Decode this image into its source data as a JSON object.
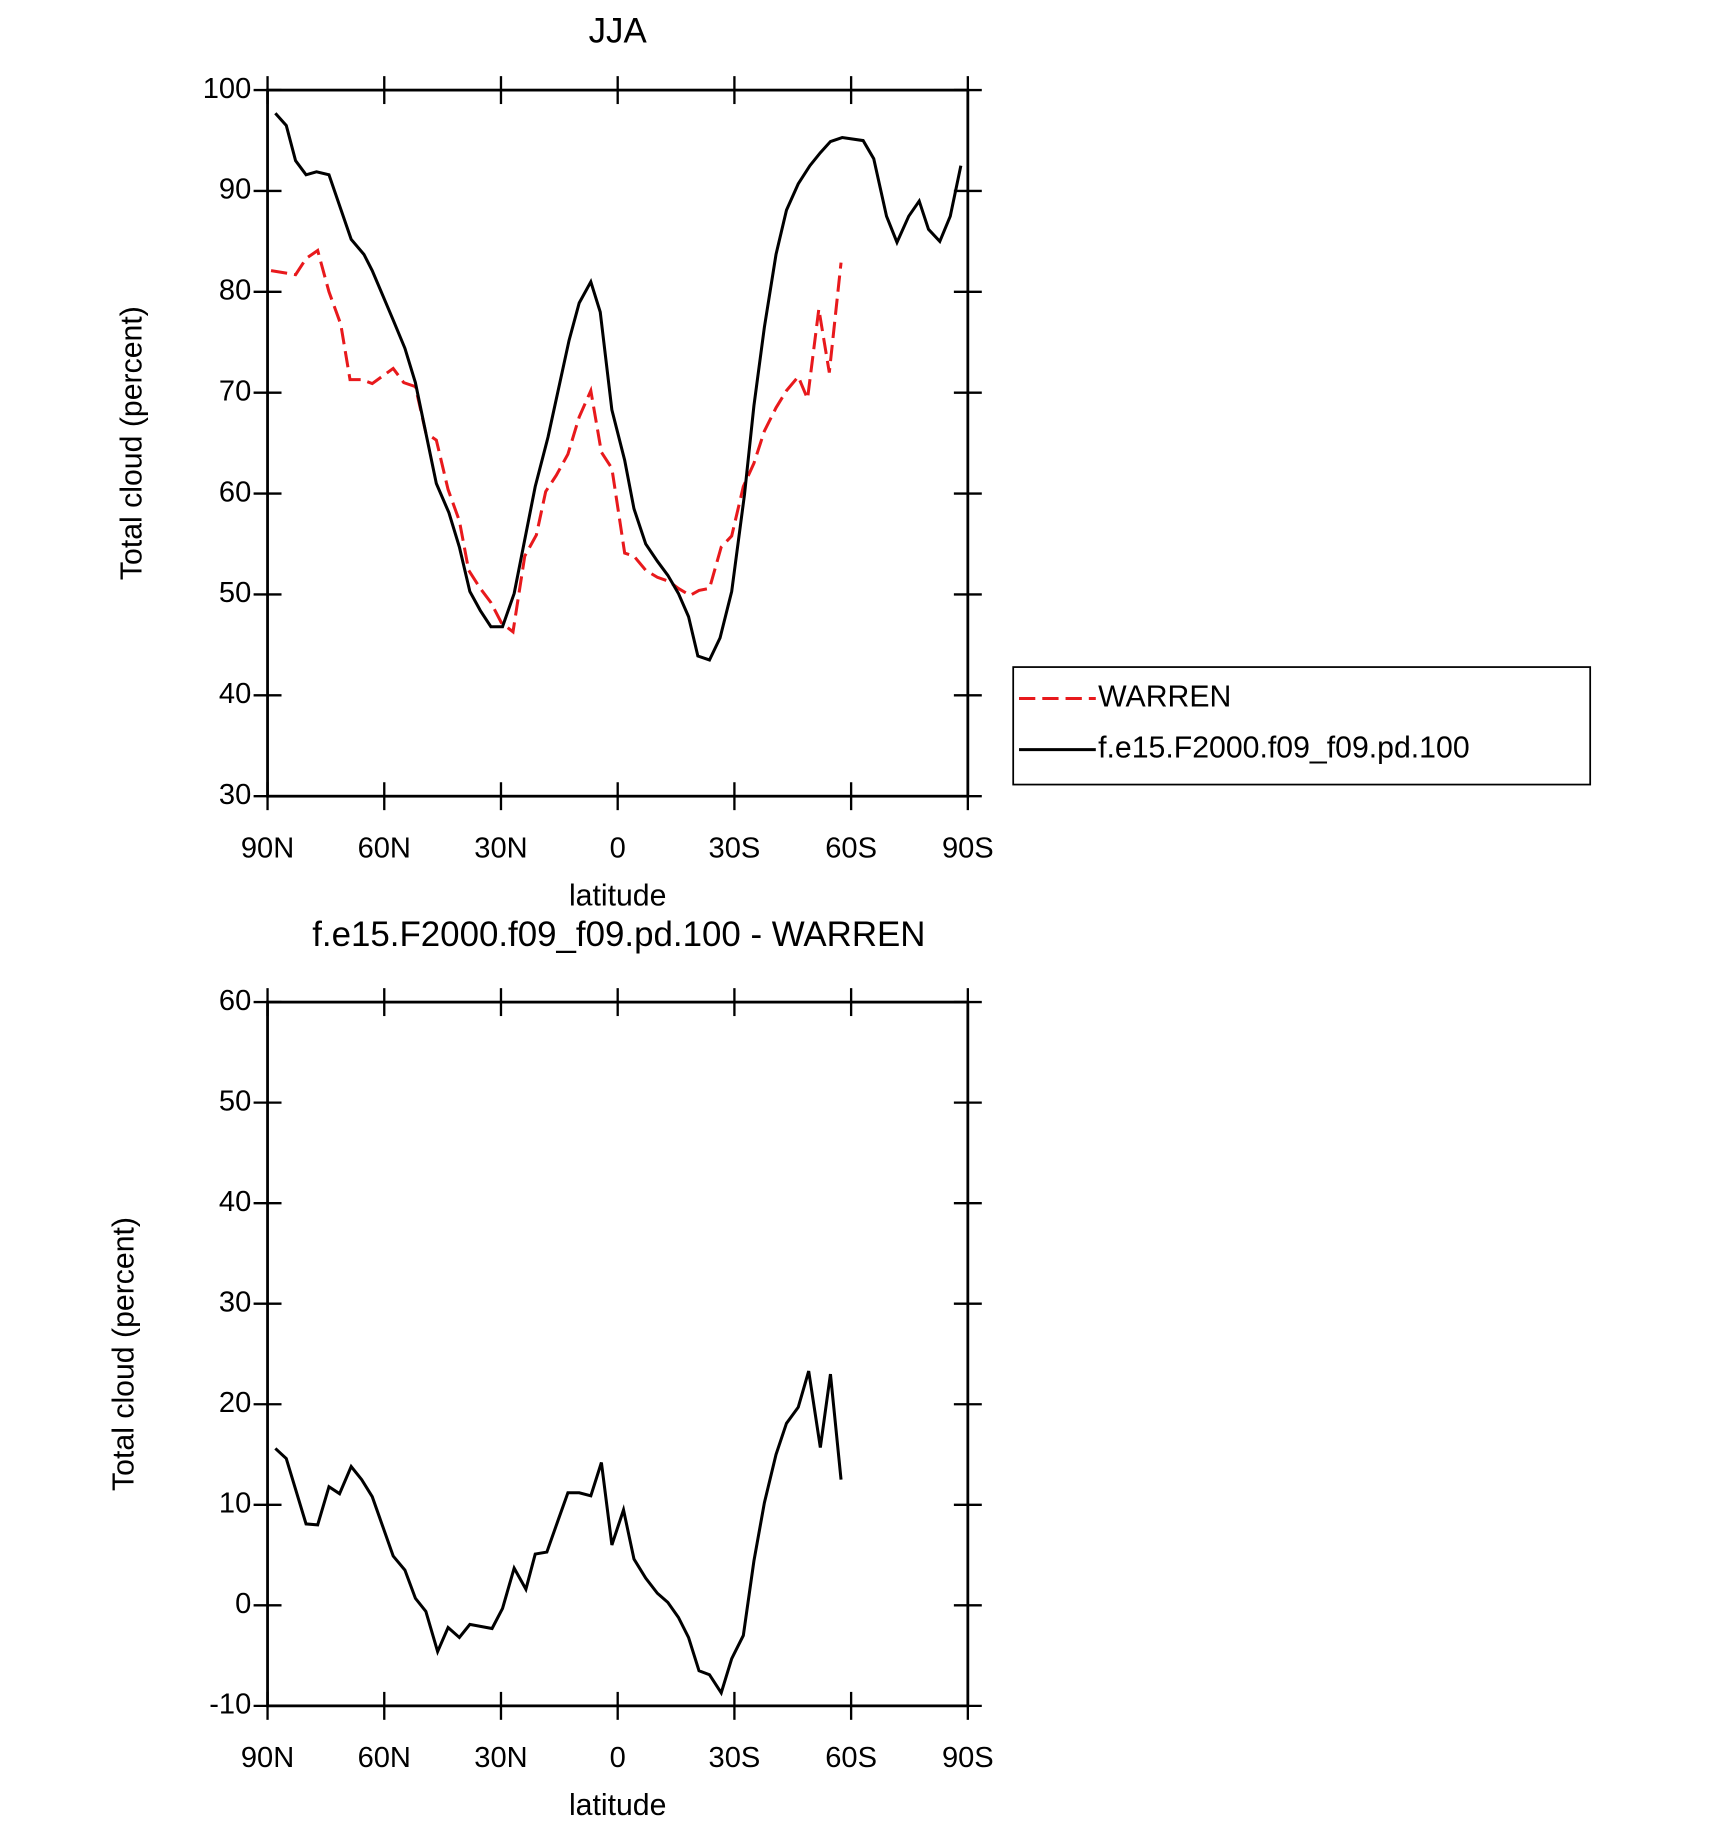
{
  "chart_data": [
    {
      "type": "line",
      "title": "JJA",
      "xlabel": "latitude",
      "ylabel": "Total cloud (percent)",
      "xlim": [
        90,
        -90
      ],
      "xticks": [
        {
          "value": 90,
          "label": "90N"
        },
        {
          "value": 60,
          "label": "60N"
        },
        {
          "value": 30,
          "label": "30N"
        },
        0,
        {
          "value": -30,
          "label": "30S"
        },
        {
          "value": -60,
          "label": "60S"
        },
        {
          "value": -90,
          "label": "90S"
        }
      ],
      "ylim": [
        30,
        100
      ],
      "yticks": [
        30,
        40,
        50,
        60,
        70,
        80,
        90,
        100
      ],
      "series": [
        {
          "name": "WARREN",
          "color": "#e8191c",
          "linestyle": "dashed",
          "x": [
            89.1,
            82.8,
            80.1,
            77.1,
            74.2,
            71.2,
            68.8,
            65.8,
            63.1,
            57.7,
            55.0,
            52.0,
            49.3,
            46.6,
            43.6,
            40.7,
            38.3,
            35.3,
            32.6,
            29.9,
            26.9,
            23.9,
            20.9,
            18.5,
            15.8,
            12.8,
            9.9,
            6.9,
            4.2,
            1.5,
            -1.8,
            -4.2,
            -7.2,
            -10.2,
            -13.2,
            -15.6,
            -18.6,
            -20.9,
            -23.6,
            -26.6,
            -29.3,
            -32.3,
            -35.0,
            -37.7,
            -40.7,
            -43.4,
            -46.4,
            -48.8,
            -51.7,
            -54.4,
            -57.4
          ],
          "values": [
            82.1,
            81.7,
            83.3,
            84.1,
            80.0,
            76.8,
            71.3,
            71.3,
            70.9,
            72.4,
            71.0,
            70.6,
            66.0,
            65.3,
            60.4,
            57.3,
            52.4,
            50.6,
            49.2,
            47.2,
            46.3,
            53.8,
            55.9,
            60.2,
            61.8,
            63.9,
            67.6,
            70.2,
            64.1,
            62.5,
            54.1,
            53.8,
            52.4,
            51.7,
            51.3,
            50.6,
            49.9,
            50.4,
            50.6,
            54.7,
            55.8,
            60.7,
            63.0,
            66.2,
            68.5,
            70.2,
            71.6,
            69.4,
            78.3,
            72.0,
            82.9
          ]
        },
        {
          "name": "f.e15.F2000.f09_f09.pd.100",
          "color": "#000000",
          "linestyle": "solid",
          "x": [
            88.0,
            85.2,
            82.8,
            80.1,
            77.4,
            74.2,
            68.5,
            65.2,
            63.1,
            57.7,
            54.7,
            52.0,
            46.6,
            43.4,
            40.7,
            38.0,
            35.3,
            32.6,
            29.6,
            26.6,
            21.2,
            17.9,
            12.5,
            9.9,
            6.9,
            4.5,
            1.5,
            -1.8,
            -4.2,
            -7.2,
            -10.2,
            -12.9,
            -15.6,
            -18.2,
            -20.6,
            -23.6,
            -26.3,
            -29.3,
            -32.6,
            -35.0,
            -37.7,
            -40.7,
            -43.4,
            -46.4,
            -49.4,
            -52.1,
            -54.7,
            -57.7,
            -63.1,
            -65.8,
            -69.1,
            -71.8,
            -74.8,
            -77.5,
            -79.9,
            -82.8,
            -85.5,
            -88.2
          ],
          "values": [
            97.7,
            96.5,
            93.0,
            91.6,
            91.9,
            91.6,
            85.2,
            83.7,
            82.1,
            77.2,
            74.4,
            71.0,
            61.0,
            58.1,
            54.7,
            50.3,
            48.4,
            46.8,
            46.8,
            50.1,
            60.7,
            65.6,
            75.2,
            78.9,
            81.0,
            78.0,
            68.3,
            63.3,
            58.5,
            55.0,
            53.3,
            51.9,
            50.1,
            47.8,
            43.9,
            43.5,
            45.7,
            50.3,
            59.9,
            68.7,
            76.5,
            83.7,
            88.1,
            90.7,
            92.5,
            93.8,
            94.9,
            95.3,
            95.0,
            93.2,
            87.5,
            84.9,
            87.5,
            89.0,
            86.2,
            85.0,
            87.5,
            92.5
          ]
        }
      ]
    },
    {
      "type": "line",
      "title": "f.e15.F2000.f09_f09.pd.100 - WARREN",
      "xlabel": "latitude",
      "ylabel": "Total cloud (percent)",
      "xlim": [
        90,
        -90
      ],
      "xticks": [
        {
          "value": 90,
          "label": "90N"
        },
        {
          "value": 60,
          "label": "60N"
        },
        {
          "value": 30,
          "label": "30N"
        },
        0,
        {
          "value": -30,
          "label": "30S"
        },
        {
          "value": -60,
          "label": "60S"
        },
        {
          "value": -90,
          "label": "90S"
        }
      ],
      "ylim": [
        -10,
        60
      ],
      "yticks": [
        -10,
        0,
        10,
        20,
        30,
        40,
        50,
        60
      ],
      "series": [
        {
          "color": "#000000",
          "linestyle": "solid",
          "x": [
            88.0,
            85.2,
            80.1,
            77.1,
            74.2,
            71.5,
            68.5,
            65.8,
            63.1,
            57.7,
            54.7,
            52.0,
            49.3,
            46.3,
            43.6,
            40.7,
            38.0,
            32.3,
            29.6,
            26.6,
            23.6,
            21.2,
            18.2,
            15.2,
            12.8,
            9.9,
            6.9,
            4.2,
            1.5,
            -1.5,
            -4.2,
            -7.2,
            -10.2,
            -12.9,
            -15.6,
            -18.2,
            -20.9,
            -23.6,
            -26.6,
            -29.3,
            -32.3,
            -35.0,
            -37.7,
            -40.7,
            -43.4,
            -46.4,
            -49.1,
            -52.1,
            -54.7,
            -57.4
          ],
          "values": [
            15.6,
            14.6,
            8.1,
            8.0,
            11.8,
            11.1,
            13.8,
            12.5,
            10.8,
            4.9,
            3.5,
            0.7,
            -0.6,
            -4.6,
            -2.2,
            -3.2,
            -1.9,
            -2.3,
            -0.3,
            3.7,
            1.6,
            5.1,
            5.3,
            8.6,
            11.2,
            11.2,
            10.9,
            14.2,
            6.0,
            9.5,
            4.6,
            2.7,
            1.2,
            0.3,
            -1.2,
            -3.2,
            -6.5,
            -6.9,
            -8.7,
            -5.3,
            -3.0,
            4.4,
            10.2,
            15.0,
            18.1,
            19.7,
            23.3,
            15.7,
            23.0,
            12.5
          ]
        }
      ]
    }
  ]
}
